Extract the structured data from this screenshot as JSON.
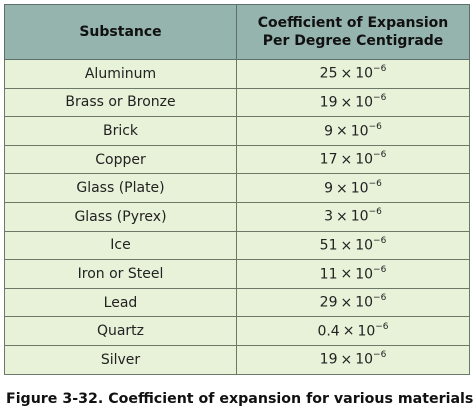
{
  "table": {
    "header": {
      "substance": "Substance",
      "coefficient_line1": "Coefficient of Expansion",
      "coefficient_line2": "Per Degree Centigrade"
    },
    "rows": [
      {
        "substance": "Aluminum",
        "mantissa": "25",
        "exponent": "−6"
      },
      {
        "substance": "Brass or Bronze",
        "mantissa": "19",
        "exponent": "−6"
      },
      {
        "substance": "Brick",
        "mantissa": "9",
        "exponent": "−6"
      },
      {
        "substance": "Copper",
        "mantissa": "17",
        "exponent": "−6"
      },
      {
        "substance": "Glass (Plate)",
        "mantissa": "9",
        "exponent": "−6"
      },
      {
        "substance": "Glass (Pyrex)",
        "mantissa": "3",
        "exponent": "−6"
      },
      {
        "substance": "Ice",
        "mantissa": "51",
        "exponent": "−6"
      },
      {
        "substance": "Iron or Steel",
        "mantissa": "11",
        "exponent": "−6"
      },
      {
        "substance": "Lead",
        "mantissa": "29",
        "exponent": "−6"
      },
      {
        "substance": "Quartz",
        "mantissa": "0.4",
        "exponent": "−6"
      },
      {
        "substance": "Silver",
        "mantissa": "19",
        "exponent": "−6"
      }
    ],
    "times_symbol": "×",
    "base": "10"
  },
  "caption": "Figure 3-32. Coefficient of expansion for various materials.",
  "colors": {
    "header_bg": "#95b4ad",
    "row_bg": "#e7f2d9"
  }
}
